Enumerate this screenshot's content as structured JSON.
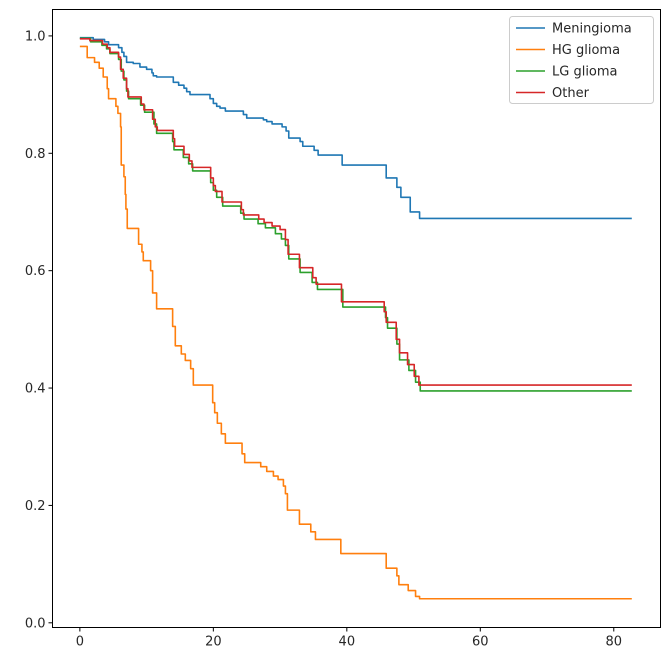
{
  "chart_data": {
    "type": "line",
    "step": true,
    "title": "",
    "xlabel": "",
    "ylabel": "",
    "xlim": [
      -4.1,
      87.0
    ],
    "ylim": [
      -0.008,
      1.045
    ],
    "xticks": [
      0,
      20,
      40,
      60,
      80
    ],
    "yticks": [
      0.0,
      0.2,
      0.4,
      0.6,
      0.8,
      1.0
    ],
    "xtick_labels": [
      "0",
      "20",
      "40",
      "60",
      "80"
    ],
    "ytick_labels": [
      "0.0",
      "0.2",
      "0.4",
      "0.6",
      "0.8",
      "1.0"
    ],
    "grid": false,
    "legend_position": "upper-right",
    "series": [
      {
        "name": "Meningioma",
        "color": "#1f77b4",
        "points": [
          [
            0,
            0.997
          ],
          [
            2.0,
            0.994
          ],
          [
            3.7,
            0.99
          ],
          [
            4.3,
            0.985
          ],
          [
            5.8,
            0.98
          ],
          [
            6.3,
            0.972
          ],
          [
            6.6,
            0.965
          ],
          [
            7.0,
            0.955
          ],
          [
            8.0,
            0.953
          ],
          [
            9.0,
            0.947
          ],
          [
            10.0,
            0.943
          ],
          [
            10.8,
            0.937
          ],
          [
            11.0,
            0.932
          ],
          [
            11.5,
            0.93
          ],
          [
            14.0,
            0.921
          ],
          [
            14.8,
            0.916
          ],
          [
            15.6,
            0.911
          ],
          [
            16.0,
            0.905
          ],
          [
            16.5,
            0.9
          ],
          [
            19.5,
            0.893
          ],
          [
            20.0,
            0.885
          ],
          [
            20.5,
            0.88
          ],
          [
            21.0,
            0.877
          ],
          [
            21.8,
            0.872
          ],
          [
            24.5,
            0.866
          ],
          [
            25.0,
            0.86
          ],
          [
            27.5,
            0.857
          ],
          [
            28.0,
            0.854
          ],
          [
            28.8,
            0.85
          ],
          [
            30.3,
            0.845
          ],
          [
            30.9,
            0.838
          ],
          [
            31.3,
            0.826
          ],
          [
            33.0,
            0.82
          ],
          [
            33.4,
            0.812
          ],
          [
            35.1,
            0.805
          ],
          [
            35.7,
            0.797
          ],
          [
            39.3,
            0.78
          ],
          [
            45.9,
            0.758
          ],
          [
            47.5,
            0.742
          ],
          [
            48.1,
            0.725
          ],
          [
            49.5,
            0.7
          ],
          [
            50.9,
            0.689
          ],
          [
            82.7,
            0.689
          ]
        ]
      },
      {
        "name": "HG glioma",
        "color": "#ff7f0e",
        "points": [
          [
            0,
            0.982
          ],
          [
            1.1,
            0.963
          ],
          [
            2.2,
            0.955
          ],
          [
            2.9,
            0.945
          ],
          [
            3.5,
            0.93
          ],
          [
            4.1,
            0.91
          ],
          [
            4.3,
            0.893
          ],
          [
            5.4,
            0.88
          ],
          [
            5.7,
            0.868
          ],
          [
            6.1,
            0.845
          ],
          [
            6.2,
            0.78
          ],
          [
            6.6,
            0.76
          ],
          [
            6.8,
            0.73
          ],
          [
            6.9,
            0.705
          ],
          [
            7.1,
            0.672
          ],
          [
            8.8,
            0.645
          ],
          [
            9.3,
            0.632
          ],
          [
            9.5,
            0.617
          ],
          [
            10.6,
            0.6
          ],
          [
            10.9,
            0.562
          ],
          [
            11.5,
            0.535
          ],
          [
            13.9,
            0.505
          ],
          [
            14.3,
            0.472
          ],
          [
            15.2,
            0.458
          ],
          [
            15.8,
            0.447
          ],
          [
            16.6,
            0.433
          ],
          [
            17.0,
            0.405
          ],
          [
            19.9,
            0.375
          ],
          [
            20.2,
            0.358
          ],
          [
            20.6,
            0.34
          ],
          [
            21.2,
            0.322
          ],
          [
            21.8,
            0.306
          ],
          [
            24.3,
            0.288
          ],
          [
            24.7,
            0.273
          ],
          [
            27.1,
            0.266
          ],
          [
            28.0,
            0.258
          ],
          [
            29.0,
            0.25
          ],
          [
            29.7,
            0.244
          ],
          [
            30.5,
            0.233
          ],
          [
            30.8,
            0.22
          ],
          [
            31.1,
            0.192
          ],
          [
            32.9,
            0.168
          ],
          [
            34.6,
            0.155
          ],
          [
            35.3,
            0.142
          ],
          [
            39.1,
            0.118
          ],
          [
            45.9,
            0.093
          ],
          [
            47.5,
            0.08
          ],
          [
            47.8,
            0.065
          ],
          [
            49.2,
            0.055
          ],
          [
            50.3,
            0.045
          ],
          [
            50.9,
            0.041
          ],
          [
            82.7,
            0.041
          ]
        ]
      },
      {
        "name": "LG glioma",
        "color": "#2ca02c",
        "points": [
          [
            0,
            0.996
          ],
          [
            1.6,
            0.99
          ],
          [
            3.3,
            0.984
          ],
          [
            4.0,
            0.978
          ],
          [
            4.5,
            0.97
          ],
          [
            5.8,
            0.96
          ],
          [
            6.2,
            0.94
          ],
          [
            6.6,
            0.925
          ],
          [
            7.0,
            0.906
          ],
          [
            7.3,
            0.893
          ],
          [
            9.1,
            0.882
          ],
          [
            9.7,
            0.87
          ],
          [
            11.1,
            0.85
          ],
          [
            11.5,
            0.834
          ],
          [
            13.9,
            0.82
          ],
          [
            14.1,
            0.806
          ],
          [
            15.5,
            0.793
          ],
          [
            16.3,
            0.782
          ],
          [
            16.9,
            0.77
          ],
          [
            19.6,
            0.75
          ],
          [
            20.0,
            0.737
          ],
          [
            20.5,
            0.725
          ],
          [
            21.4,
            0.71
          ],
          [
            24.1,
            0.698
          ],
          [
            24.6,
            0.688
          ],
          [
            26.7,
            0.68
          ],
          [
            27.8,
            0.673
          ],
          [
            29.3,
            0.663
          ],
          [
            30.2,
            0.654
          ],
          [
            30.8,
            0.643
          ],
          [
            31.3,
            0.62
          ],
          [
            33.0,
            0.597
          ],
          [
            34.8,
            0.58
          ],
          [
            35.6,
            0.568
          ],
          [
            39.4,
            0.538
          ],
          [
            45.8,
            0.52
          ],
          [
            46.1,
            0.502
          ],
          [
            47.5,
            0.475
          ],
          [
            47.9,
            0.448
          ],
          [
            49.3,
            0.43
          ],
          [
            50.3,
            0.41
          ],
          [
            51.0,
            0.395
          ],
          [
            82.7,
            0.395
          ]
        ]
      },
      {
        "name": "Other",
        "color": "#d62728",
        "points": [
          [
            0,
            0.995
          ],
          [
            1.5,
            0.992
          ],
          [
            3.4,
            0.986
          ],
          [
            4.1,
            0.98
          ],
          [
            4.5,
            0.972
          ],
          [
            5.8,
            0.964
          ],
          [
            6.1,
            0.943
          ],
          [
            6.5,
            0.928
          ],
          [
            7.0,
            0.91
          ],
          [
            7.2,
            0.896
          ],
          [
            9.2,
            0.884
          ],
          [
            9.6,
            0.874
          ],
          [
            10.9,
            0.858
          ],
          [
            11.3,
            0.845
          ],
          [
            11.6,
            0.839
          ],
          [
            14.0,
            0.825
          ],
          [
            14.2,
            0.812
          ],
          [
            15.6,
            0.798
          ],
          [
            16.4,
            0.787
          ],
          [
            16.8,
            0.776
          ],
          [
            19.6,
            0.758
          ],
          [
            20.0,
            0.745
          ],
          [
            20.3,
            0.735
          ],
          [
            21.3,
            0.717
          ],
          [
            24.2,
            0.704
          ],
          [
            24.5,
            0.695
          ],
          [
            26.8,
            0.688
          ],
          [
            27.6,
            0.682
          ],
          [
            28.8,
            0.676
          ],
          [
            30.0,
            0.67
          ],
          [
            30.8,
            0.653
          ],
          [
            31.2,
            0.628
          ],
          [
            32.9,
            0.605
          ],
          [
            34.9,
            0.588
          ],
          [
            35.4,
            0.577
          ],
          [
            39.2,
            0.547
          ],
          [
            45.6,
            0.53
          ],
          [
            45.9,
            0.512
          ],
          [
            47.4,
            0.483
          ],
          [
            47.9,
            0.46
          ],
          [
            49.1,
            0.44
          ],
          [
            50.1,
            0.42
          ],
          [
            50.8,
            0.405
          ],
          [
            82.7,
            0.405
          ]
        ]
      }
    ]
  }
}
